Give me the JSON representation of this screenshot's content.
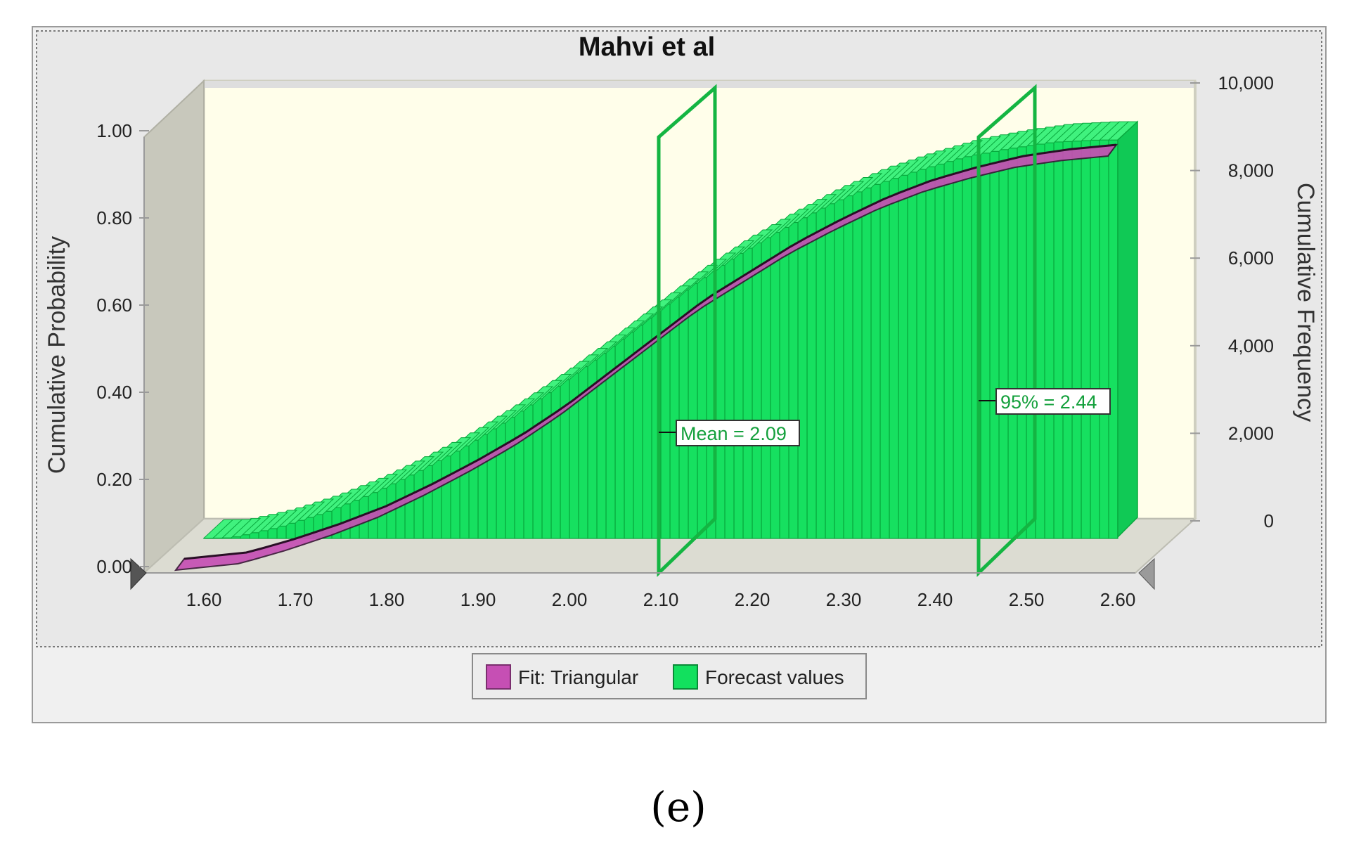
{
  "chart_data": {
    "type": "bar",
    "title": "Mahvi et al",
    "xlabel": "",
    "ylabel": "Cumulative Probability",
    "y2label": "Cumulative Frequency",
    "x_ticks": [
      "1.60",
      "1.70",
      "1.80",
      "1.90",
      "2.00",
      "2.10",
      "2.20",
      "2.30",
      "2.40",
      "2.50",
      "2.60"
    ],
    "y_ticks": [
      "0.00",
      "0.20",
      "0.40",
      "0.60",
      "0.80",
      "1.00"
    ],
    "y2_ticks": [
      "0",
      "2,000",
      "4,000",
      "6,000",
      "8,000",
      "10,000"
    ],
    "xlim": [
      1.6,
      2.6
    ],
    "ylim": [
      0,
      1
    ],
    "y2lim": [
      0,
      10000
    ],
    "series": [
      {
        "name": "Forecast values",
        "kind": "cumulative frequency bars",
        "color": "#12e05e",
        "x": [
          1.6,
          1.65,
          1.7,
          1.75,
          1.8,
          1.85,
          1.9,
          1.95,
          2.0,
          2.05,
          2.1,
          2.15,
          2.2,
          2.25,
          2.3,
          2.35,
          2.4,
          2.45,
          2.5,
          2.55,
          2.6
        ],
        "values": [
          0,
          15,
          250,
          580,
          1000,
          1500,
          2050,
          2700,
          3400,
          4150,
          4950,
          5750,
          6450,
          7050,
          7600,
          8050,
          8400,
          8700,
          8900,
          9050,
          9100
        ]
      },
      {
        "name": "Fit: Triangular",
        "kind": "cumulative probability curve",
        "color": "#c64fb4",
        "x": [
          1.58,
          1.65,
          1.7,
          1.75,
          1.8,
          1.85,
          1.9,
          1.95,
          2.0,
          2.05,
          2.1,
          2.15,
          2.2,
          2.25,
          2.3,
          2.35,
          2.4,
          2.45,
          2.5,
          2.55,
          2.6
        ],
        "values": [
          0.0,
          0.015,
          0.045,
          0.08,
          0.12,
          0.17,
          0.225,
          0.285,
          0.355,
          0.435,
          0.515,
          0.595,
          0.66,
          0.725,
          0.78,
          0.83,
          0.87,
          0.9,
          0.925,
          0.94,
          0.95
        ]
      }
    ],
    "markers": [
      {
        "label": "Mean = 2.09",
        "x": 2.09
      },
      {
        "label": "95% = 2.44",
        "x": 2.44
      }
    ],
    "legend": {
      "position": "bottom",
      "items": [
        {
          "label": "Fit: Triangular",
          "color": "#c64fb4"
        },
        {
          "label": "Forecast values",
          "color": "#12e05e"
        }
      ]
    },
    "grid": false,
    "caption": "(e)"
  }
}
